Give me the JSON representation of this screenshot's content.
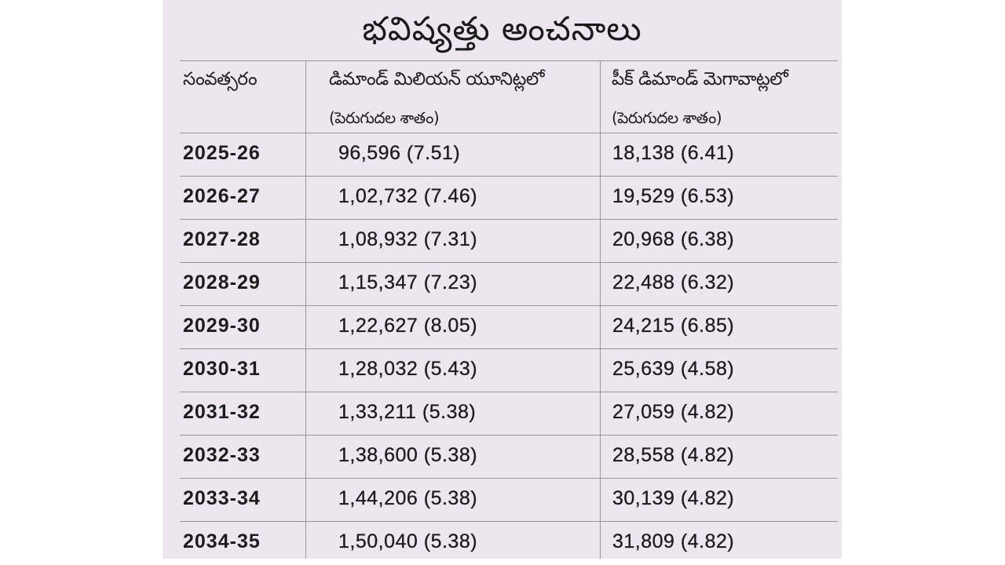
{
  "title": "భవిష్యత్తు అంచనాలు",
  "table": {
    "headers": {
      "year": "సంవత్సరం",
      "demand": "డిమాండ్ మిలియన్ యూనిట్లలో",
      "demand_sub": "(పెరుగుదల శాతం)",
      "peak": "పీక్ డిమాండ్ మెగావాట్లలో",
      "peak_sub": "(పెరుగుదల శాతం)"
    },
    "rows": [
      {
        "year": "2025-26",
        "demand": "96,596  (7.51)",
        "peak": "18,138 (6.41)"
      },
      {
        "year": "2026-27",
        "demand": "1,02,732 (7.46)",
        "peak": "19,529 (6.53)"
      },
      {
        "year": "2027-28",
        "demand": "1,08,932 (7.31)",
        "peak": "20,968 (6.38)"
      },
      {
        "year": "2028-29",
        "demand": "1,15,347 (7.23)",
        "peak": "22,488 (6.32)"
      },
      {
        "year": "2029-30",
        "demand": "1,22,627 (8.05)",
        "peak": "24,215 (6.85)"
      },
      {
        "year": "2030-31",
        "demand": "1,28,032 (5.43)",
        "peak": "25,639 (4.58)"
      },
      {
        "year": "2031-32",
        "demand": "1,33,211 (5.38)",
        "peak": "27,059 (4.82)"
      },
      {
        "year": "2032-33",
        "demand": "1,38,600 (5.38)",
        "peak": "28,558 (4.82)"
      },
      {
        "year": "2033-34",
        "demand": "1,44,206 (5.38)",
        "peak": "30,139 (4.82)"
      },
      {
        "year": "2034-35",
        "demand": "1,50,040 (5.38)",
        "peak": "31,809 (4.82)"
      }
    ]
  }
}
